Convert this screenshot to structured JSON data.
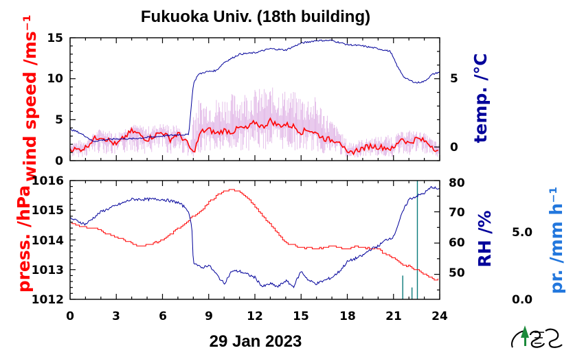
{
  "chart_data": [
    {
      "type": "line",
      "title": "Fukuoka Univ. (18th building)",
      "xlabel": "29 Jan 2023",
      "x_unit": "hour of day",
      "xlim": [
        0,
        24
      ],
      "x_ticks": [
        "0",
        "3",
        "6",
        "9",
        "12",
        "15",
        "18",
        "21",
        "24"
      ],
      "left_axis": {
        "label": "wind speed /ms⁻¹",
        "ylim": [
          0,
          15
        ],
        "ticks": [
          "0",
          "5",
          "10",
          "15"
        ],
        "color": "#ff0000"
      },
      "right_axis": {
        "label": "temp. /°C",
        "ylim": [
          -1,
          8
        ],
        "ticks": [
          "0",
          "5"
        ],
        "color": "#00009a"
      },
      "series": [
        {
          "axis": "left",
          "color": "#ff0000",
          "style": "mean",
          "x": [
            0,
            0.5,
            1,
            1.5,
            2,
            2.5,
            3,
            3.5,
            4,
            4.5,
            5,
            5.5,
            6,
            6.5,
            7,
            7.5,
            8,
            8.5,
            9,
            9.5,
            10,
            10.5,
            11,
            11.5,
            12,
            12.5,
            13,
            13.5,
            14,
            14.5,
            15,
            15.5,
            16,
            16.5,
            17,
            17.5,
            18,
            18.5,
            19,
            19.5,
            20,
            20.5,
            21,
            21.5,
            22,
            22.5,
            23,
            23.5,
            24
          ],
          "y": [
            1.5,
            1.3,
            1.6,
            2.6,
            3,
            2.5,
            1.9,
            2.8,
            3.6,
            3.2,
            2.6,
            3.1,
            3.5,
            2.6,
            3.3,
            2.4,
            0.9,
            3.5,
            3.8,
            3.3,
            3.7,
            3.5,
            4,
            3.9,
            4.7,
            4.1,
            4.9,
            4.3,
            4.4,
            4.2,
            3.5,
            3.8,
            3.3,
            2.7,
            2.5,
            2.5,
            0.7,
            1.2,
            1.5,
            1.8,
            1.7,
            1.6,
            1.4,
            2.8,
            2.1,
            2.7,
            2.4,
            1.8,
            0.9
          ]
        },
        {
          "axis": "left",
          "color": "#d9a3e0",
          "style": "gust envelope",
          "x": [
            0,
            1,
            2,
            3,
            4,
            5,
            6,
            7,
            7.8,
            8,
            9,
            10,
            11,
            12,
            13,
            14,
            15,
            16,
            17,
            18,
            19,
            20,
            21,
            22,
            23,
            24
          ],
          "y": [
            2.4,
            2.6,
            4,
            3.5,
            4.5,
            4.2,
            4.6,
            4.3,
            2,
            7.5,
            7.6,
            8,
            8.5,
            8.8,
            9,
            8.7,
            8.2,
            7.8,
            5,
            2.5,
            2.6,
            3,
            3.2,
            3.8,
            3.4,
            2
          ]
        },
        {
          "axis": "right",
          "color": "#00009a",
          "style": "temperature",
          "x": [
            0,
            0.5,
            1,
            1.5,
            2,
            3,
            4,
            5,
            6,
            7,
            7.7,
            8,
            8.3,
            8.8,
            9.5,
            10,
            11,
            12,
            13,
            14,
            15,
            16,
            17,
            18,
            19,
            20,
            20.8,
            21,
            21.3,
            21.7,
            22,
            22.5,
            23,
            23.5,
            24
          ],
          "y": [
            1.3,
            1.1,
            0.8,
            0.4,
            0.5,
            0.6,
            0.6,
            0.7,
            0.8,
            0.9,
            0.9,
            4.6,
            5.3,
            5.5,
            5.6,
            6.2,
            6.8,
            6.9,
            7.2,
            7.1,
            7.6,
            7.8,
            7.8,
            7.5,
            7.4,
            7.2,
            7.0,
            6.5,
            5.8,
            5.1,
            4.9,
            4.7,
            4.8,
            5.3,
            5.5
          ]
        }
      ]
    },
    {
      "type": "line",
      "xlabel": "29 Jan 2023",
      "x_unit": "hour of day",
      "xlim": [
        0,
        24
      ],
      "x_ticks": [
        "0",
        "3",
        "6",
        "9",
        "12",
        "15",
        "18",
        "21",
        "24"
      ],
      "left_axis": {
        "label": "press. /hPa",
        "ylim": [
          1012,
          1016
        ],
        "ticks": [
          "1012",
          "1013",
          "1014",
          "1015",
          "1016"
        ],
        "color": "#ff0000"
      },
      "right_axis": {
        "label": "RH /%",
        "ylim": [
          42,
          80
        ],
        "ticks": [
          "50",
          "60",
          "70",
          "80"
        ],
        "color": "#00009a"
      },
      "precip_axis": {
        "label": "pr. /mm h⁻¹",
        "ylim": [
          0,
          10
        ],
        "ticks": [
          "0.0",
          "5.0"
        ],
        "color": "#2277dd"
      },
      "series": [
        {
          "axis": "left",
          "color": "#ff0000",
          "style": "step",
          "name_hidden": "pressure",
          "x": [
            0,
            0.5,
            1,
            1.5,
            2,
            2.5,
            3,
            3.5,
            4,
            4.5,
            5,
            5.5,
            6,
            6.5,
            7,
            7.5,
            8,
            8.5,
            9,
            9.5,
            10,
            10.5,
            11,
            11.5,
            12,
            12.5,
            13,
            13.5,
            14,
            15,
            16,
            17,
            17.5,
            18,
            18.5,
            19,
            20,
            20.5,
            21,
            21.5,
            22,
            22.5,
            23,
            23.5,
            24
          ],
          "y": [
            1014.6,
            1014.5,
            1014.4,
            1014.4,
            1014.3,
            1014.2,
            1014.1,
            1014.0,
            1013.9,
            1013.8,
            1013.85,
            1013.9,
            1014.0,
            1014.2,
            1014.4,
            1014.6,
            1014.8,
            1015.0,
            1015.3,
            1015.5,
            1015.65,
            1015.7,
            1015.6,
            1015.4,
            1015.1,
            1014.8,
            1014.5,
            1014.2,
            1013.9,
            1013.75,
            1013.7,
            1013.8,
            1013.75,
            1013.7,
            1013.8,
            1013.75,
            1013.7,
            1013.5,
            1013.4,
            1013.2,
            1013.1,
            1013.0,
            1012.85,
            1012.7,
            1012.65
          ]
        },
        {
          "axis": "right",
          "color": "#00009a",
          "style": "humidity",
          "x": [
            0,
            0.5,
            1,
            1.5,
            2,
            3,
            4,
            5,
            6,
            7,
            7.6,
            7.9,
            8,
            8.5,
            9,
            9.5,
            10,
            10.5,
            11,
            12,
            12.5,
            13,
            13.5,
            14,
            14.5,
            15,
            15.5,
            16,
            16.5,
            17,
            17.5,
            18,
            19,
            19.5,
            20,
            20.5,
            21,
            21.3,
            21.6,
            22,
            22.5,
            23,
            23.5,
            24
          ],
          "y": [
            68,
            67,
            66,
            68,
            70,
            72,
            74,
            74,
            74,
            73,
            71,
            66,
            54,
            52,
            53,
            50,
            47,
            51,
            51,
            49,
            46,
            47,
            46,
            48,
            46,
            51,
            48,
            47,
            48,
            49,
            51,
            54,
            56,
            58,
            59,
            61,
            62,
            66,
            70,
            74,
            75,
            76,
            78,
            77
          ]
        },
        {
          "axis": "precip",
          "color": "#0a7a7a",
          "style": "bars",
          "x": [
            21.6,
            22.2,
            22.55
          ],
          "y": [
            2,
            1,
            13
          ]
        }
      ]
    }
  ],
  "logo": {
    "text": "NES"
  }
}
